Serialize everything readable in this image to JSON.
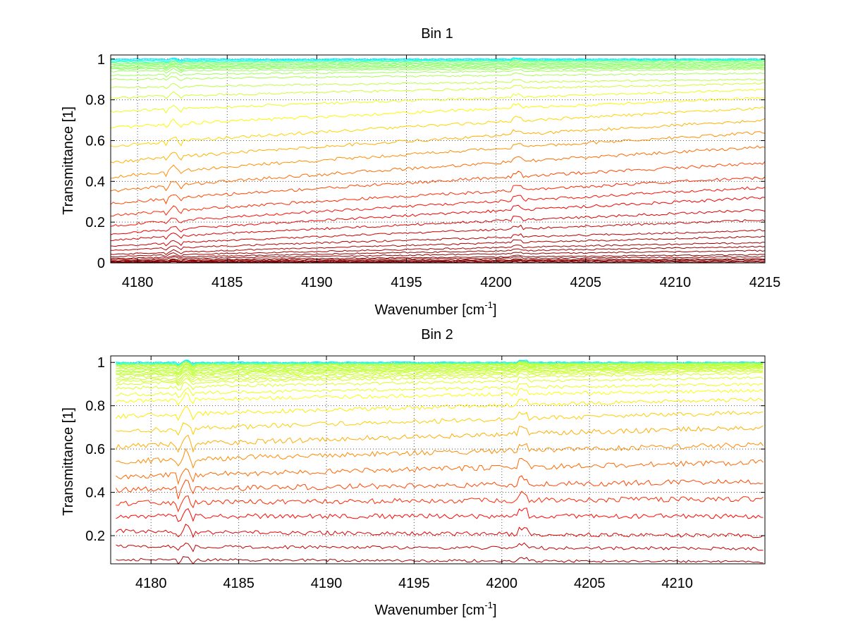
{
  "chart_data": [
    {
      "type": "line",
      "title": "Bin 1",
      "xlabel": "Wavenumber [cm",
      "xlabel_sup": "-1",
      "xlabel_close": "]",
      "ylabel": "Transmittance [1]",
      "xlim": [
        4178.5,
        4215
      ],
      "ylim": [
        0,
        1.02
      ],
      "xticks": [
        4180,
        4185,
        4190,
        4195,
        4200,
        4205,
        4210,
        4215
      ],
      "xtick_labels": [
        "4180",
        "4185",
        "4190",
        "4195",
        "4200",
        "4205",
        "4210",
        "4215"
      ],
      "yticks": [
        0,
        0.2,
        0.4,
        0.6,
        0.8,
        1
      ],
      "ytick_labels": [
        "0",
        "0.2",
        "0.4",
        "0.6",
        "0.8",
        "1"
      ],
      "grid": true,
      "series_count": 40,
      "series_colormap": "jet (blue at 1 → yellow → orange → dark red at 0)",
      "series_start_values": [
        1.0,
        0.995,
        0.99,
        0.985,
        0.98,
        0.975,
        0.97,
        0.965,
        0.96,
        0.955,
        0.95,
        0.94,
        0.92,
        0.9,
        0.86,
        0.81,
        0.74,
        0.66,
        0.57,
        0.49,
        0.42,
        0.35,
        0.29,
        0.23,
        0.18,
        0.14,
        0.11,
        0.08,
        0.06,
        0.04,
        0.03,
        0.02,
        0.015,
        0.01,
        0.007,
        0.005,
        0.003,
        0.002,
        0.001,
        0.0
      ],
      "series_end_values": [
        1.0,
        0.998,
        0.996,
        0.994,
        0.99,
        0.985,
        0.98,
        0.975,
        0.97,
        0.965,
        0.96,
        0.955,
        0.95,
        0.93,
        0.9,
        0.88,
        0.85,
        0.81,
        0.76,
        0.7,
        0.64,
        0.57,
        0.49,
        0.42,
        0.37,
        0.32,
        0.26,
        0.21,
        0.16,
        0.13,
        0.1,
        0.08,
        0.06,
        0.04,
        0.03,
        0.02,
        0.015,
        0.01,
        0.005,
        0.0
      ]
    },
    {
      "type": "line",
      "title": "Bin 2",
      "xlabel": "Wavenumber [cm",
      "xlabel_sup": "-1",
      "xlabel_close": "]",
      "ylabel": "Transmittance [1]",
      "xlim": [
        4177.7,
        4215
      ],
      "ylim": [
        0.07,
        1.03
      ],
      "xticks": [
        4180,
        4185,
        4190,
        4195,
        4200,
        4205,
        4210
      ],
      "xtick_labels": [
        "4180",
        "4185",
        "4190",
        "4195",
        "4200",
        "4205",
        "4210"
      ],
      "yticks": [
        0.2,
        0.4,
        0.6,
        0.8,
        1
      ],
      "ytick_labels": [
        "0.2",
        "0.4",
        "0.6",
        "0.8",
        "1"
      ],
      "grid": true,
      "series_count": 36,
      "series_colormap": "jet (blue/cyan near 1 → yellow → orange → dark red at bottom)",
      "series_start_values": [
        1.0,
        0.998,
        0.996,
        0.994,
        0.992,
        0.99,
        0.988,
        0.985,
        0.982,
        0.98,
        0.975,
        0.97,
        0.965,
        0.96,
        0.955,
        0.95,
        0.945,
        0.94,
        0.93,
        0.92,
        0.91,
        0.9,
        0.88,
        0.85,
        0.82,
        0.75,
        0.68,
        0.61,
        0.54,
        0.47,
        0.41,
        0.35,
        0.29,
        0.22,
        0.15,
        0.09
      ],
      "series_end_values": [
        1.0,
        0.999,
        0.998,
        0.997,
        0.996,
        0.995,
        0.994,
        0.993,
        0.992,
        0.99,
        0.988,
        0.986,
        0.984,
        0.982,
        0.98,
        0.978,
        0.975,
        0.972,
        0.97,
        0.965,
        0.96,
        0.95,
        0.93,
        0.9,
        0.87,
        0.83,
        0.77,
        0.7,
        0.62,
        0.54,
        0.45,
        0.37,
        0.29,
        0.2,
        0.14,
        0.08
      ]
    }
  ]
}
